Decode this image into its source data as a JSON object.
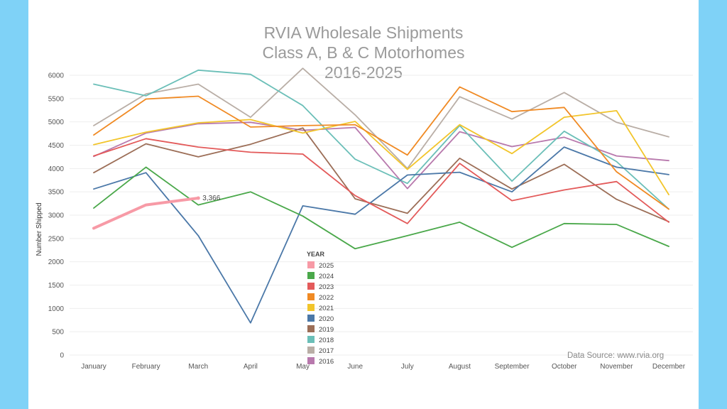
{
  "colors": {
    "frame": "#7fd2f7",
    "grid": "#eeeeee",
    "title": "#9a9a9a"
  },
  "chart_data": {
    "type": "line",
    "title": [
      "RVIA Wholesale Shipments",
      "Class A, B & C Motorhomes",
      "2016-2025"
    ],
    "ylabel": "Number Shipped",
    "xlabel": "",
    "ylim": [
      0,
      6000
    ],
    "yticks": [
      0,
      500,
      1000,
      1500,
      2000,
      2500,
      3000,
      3500,
      4000,
      4500,
      5000,
      5500,
      6000
    ],
    "categories": [
      "January",
      "February",
      "March",
      "April",
      "May",
      "June",
      "July",
      "August",
      "September",
      "October",
      "November",
      "December"
    ],
    "grid": true,
    "legend": {
      "title": "YEAR",
      "placement": "bottom-center"
    },
    "source_note": "Data Source: www.rvia.org",
    "annotations": [
      {
        "series": "2025",
        "x": "March",
        "text": "3,366"
      }
    ],
    "series": [
      {
        "name": "2025",
        "color": "#f79aa6",
        "width": 4,
        "values": [
          2720,
          3220,
          3366,
          null,
          null,
          null,
          null,
          null,
          null,
          null,
          null,
          null
        ]
      },
      {
        "name": "2024",
        "color": "#4aa84a",
        "width": 1.8,
        "values": [
          3150,
          4030,
          3220,
          3500,
          2980,
          2280,
          2560,
          2850,
          2310,
          2820,
          2800,
          2330
        ]
      },
      {
        "name": "2023",
        "color": "#e35a5a",
        "width": 1.8,
        "values": [
          4270,
          4640,
          4460,
          4350,
          4310,
          3420,
          2820,
          4110,
          3310,
          3540,
          3720,
          2850
        ]
      },
      {
        "name": "2022",
        "color": "#f08a24",
        "width": 1.8,
        "values": [
          4720,
          5490,
          5550,
          4890,
          4920,
          4940,
          4290,
          5750,
          5220,
          5310,
          3930,
          3130
        ]
      },
      {
        "name": "2021",
        "color": "#f2c52b",
        "width": 1.8,
        "values": [
          4510,
          4780,
          4980,
          5050,
          4760,
          5010,
          3980,
          4940,
          4320,
          5100,
          5240,
          3440
        ]
      },
      {
        "name": "2020",
        "color": "#4b78a8",
        "width": 1.8,
        "values": [
          3560,
          3910,
          2560,
          690,
          3200,
          3020,
          3860,
          3920,
          3500,
          4460,
          4030,
          3870
        ]
      },
      {
        "name": "2019",
        "color": "#9c6e57",
        "width": 1.8,
        "values": [
          3910,
          4530,
          4250,
          4520,
          4870,
          3350,
          3040,
          4220,
          3560,
          4090,
          3340,
          2860
        ]
      },
      {
        "name": "2018",
        "color": "#6bbfb8",
        "width": 1.8,
        "values": [
          5810,
          5560,
          6110,
          6020,
          5350,
          4200,
          3680,
          4920,
          3730,
          4800,
          4150,
          3130
        ]
      },
      {
        "name": "2017",
        "color": "#b9aea6",
        "width": 1.8,
        "values": [
          4920,
          5600,
          5810,
          5100,
          6150,
          5150,
          4000,
          5540,
          5060,
          5630,
          4990,
          4680
        ]
      },
      {
        "name": "2016",
        "color": "#b879ad",
        "width": 1.8,
        "values": [
          4260,
          4760,
          4960,
          4990,
          4820,
          4880,
          3570,
          4790,
          4470,
          4670,
          4270,
          4170
        ]
      }
    ]
  }
}
